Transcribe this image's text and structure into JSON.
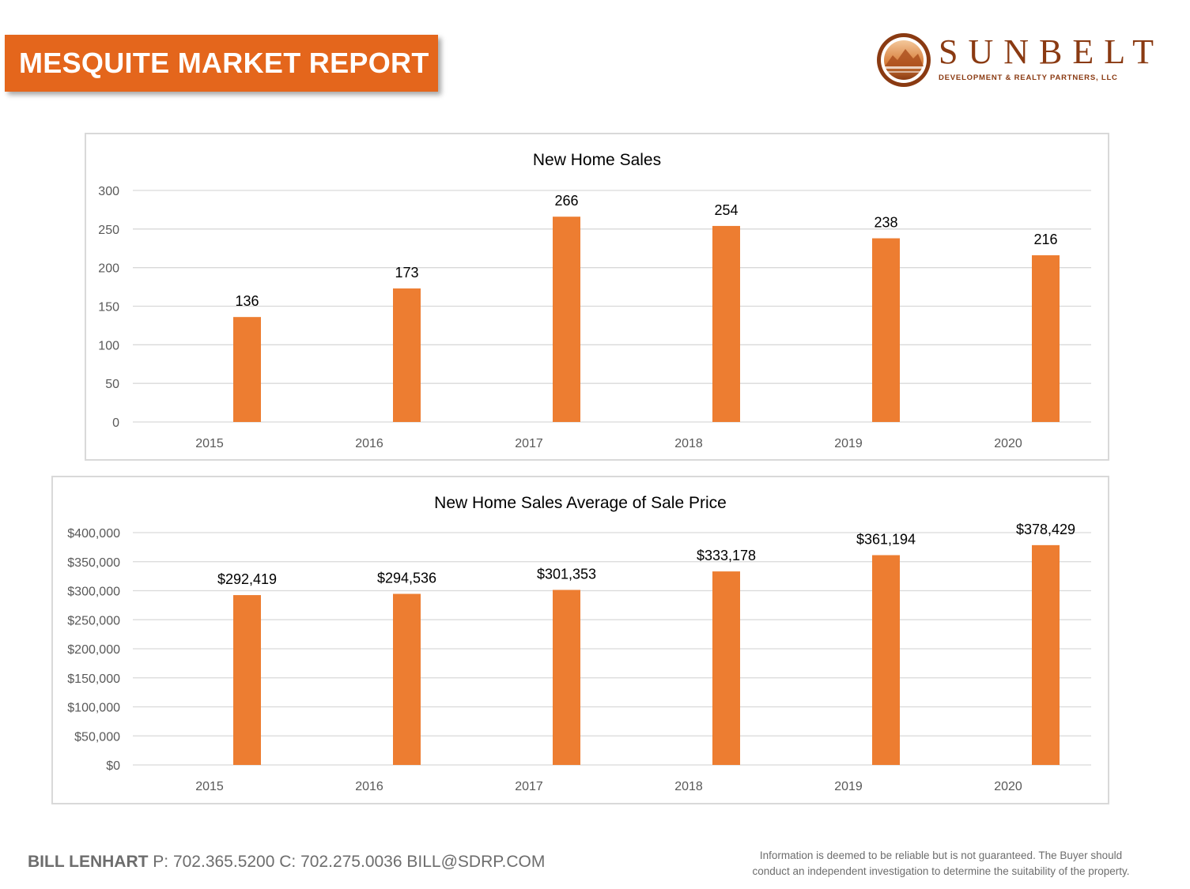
{
  "header": {
    "title": "MESQUITE MARKET REPORT"
  },
  "logo": {
    "wordmark": "SUNBELT",
    "tagline": "DEVELOPMENT & REALTY PARTNERS, LLC"
  },
  "colors": {
    "banner": "#e4661c",
    "bar": "#ed7d31",
    "logo_brown": "#8a3a12"
  },
  "chart_data": [
    {
      "type": "bar",
      "title": "New Home Sales",
      "categories": [
        "2015",
        "2016",
        "2017",
        "2018",
        "2019",
        "2020"
      ],
      "values": [
        136,
        173,
        266,
        254,
        238,
        216
      ],
      "data_labels": [
        "136",
        "173",
        "266",
        "254",
        "238",
        "216"
      ],
      "yticks": [
        "0",
        "50",
        "100",
        "150",
        "200",
        "250",
        "300"
      ],
      "ylim": [
        0,
        300
      ],
      "grid": true
    },
    {
      "type": "bar",
      "title": "New Home Sales Average of Sale Price",
      "categories": [
        "2015",
        "2016",
        "2017",
        "2018",
        "2019",
        "2020"
      ],
      "values": [
        292419,
        294536,
        301353,
        333178,
        361194,
        378429
      ],
      "data_labels": [
        "$292,419",
        "$294,536",
        "$301,353",
        "$333,178",
        "$361,194",
        "$378,429"
      ],
      "yticks": [
        "$0",
        "$50,000",
        "$100,000",
        "$150,000",
        "$200,000",
        "$250,000",
        "$300,000",
        "$350,000",
        "$400,000"
      ],
      "ylim": [
        0,
        400000
      ],
      "grid": true
    }
  ],
  "footer": {
    "name": "BILL LENHART",
    "contact": " P: 702.365.5200  C: 702.275.0036  BILL@SDRP.COM",
    "disclaimer_line1": "Information is deemed to be reliable but is not guaranteed.  The Buyer should",
    "disclaimer_line2": "conduct an independent investigation to determine the suitability of the property."
  }
}
